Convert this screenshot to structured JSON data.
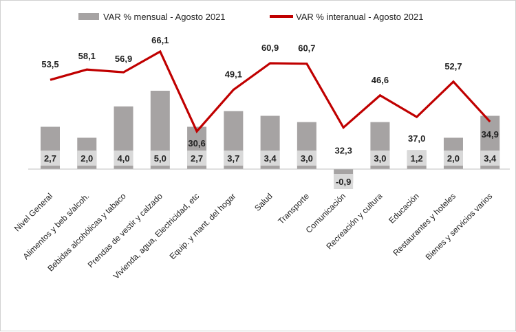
{
  "chart_data": {
    "type": "bar",
    "categories": [
      "Nivel General",
      "Alimentos y beb s/alcoh.",
      "Bebidas alcohólicas y tabaco",
      "Prendas de vestir y calzado",
      "Vivienda, agua, Electricidad, etc",
      "Equip. y mant. del hogar",
      "Salud",
      "Transporte",
      "Comunicación",
      "Recreación y cultura",
      "Educación",
      "Restaurantes y hoteles",
      "Bienes y servicios varios"
    ],
    "series": [
      {
        "name": "VAR % mensual - Agosto 2021",
        "type": "bar",
        "color": "#a6a3a3",
        "values": [
          2.7,
          2.0,
          4.0,
          5.0,
          2.7,
          3.7,
          3.4,
          3.0,
          -0.9,
          3.0,
          1.2,
          2.0,
          3.4
        ],
        "labels": [
          "2,7",
          "2,0",
          "4,0",
          "5,0",
          "2,7",
          "3,7",
          "3,4",
          "3,0",
          "-0,9",
          "3,0",
          "1,2",
          "2,0",
          "3,4"
        ]
      },
      {
        "name": "VAR % interanual - Agosto 2021",
        "type": "line",
        "color": "#c00000",
        "values": [
          53.5,
          58.1,
          56.9,
          66.1,
          30.6,
          49.1,
          60.9,
          60.7,
          32.3,
          46.6,
          37.0,
          52.7,
          34.9
        ],
        "labels": [
          "53,5",
          "58,1",
          "56,9",
          "66,1",
          "30,6",
          "49,1",
          "60,9",
          "60,7",
          "32,3",
          "46,6",
          "37,0",
          "52,7",
          "34,9"
        ]
      }
    ],
    "legend_position": "top",
    "grid": false,
    "secondary_axis": true
  }
}
